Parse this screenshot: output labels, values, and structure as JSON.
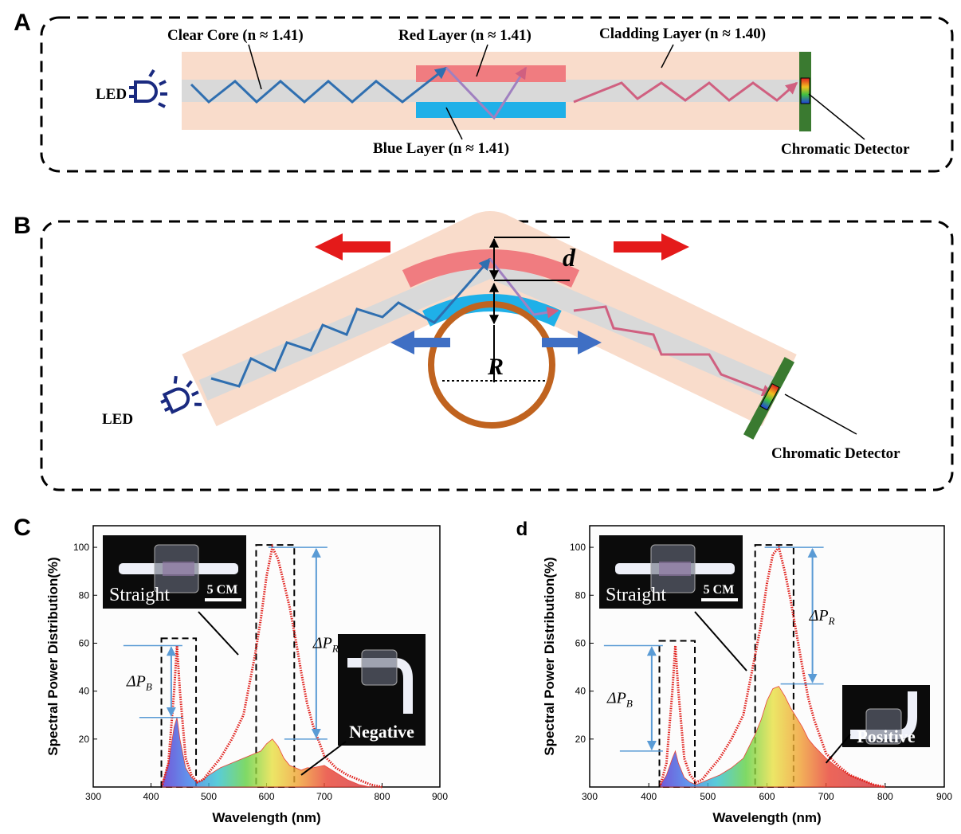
{
  "diagram_a": {
    "panel": "A",
    "core": "Clear Core (n ≈ 1.41)",
    "red": "Red Layer (n ≈ 1.41)",
    "cladding": "Cladding Layer (n ≈ 1.40)",
    "led": "LED",
    "blue": "Blue Layer (n ≈ 1.41)",
    "detector": "Chromatic Detector"
  },
  "diagram_b": {
    "panel": "B",
    "d": "d",
    "r": "R",
    "led": "LED",
    "detector": "Chromatic Detector"
  },
  "chart_data": [
    {
      "type": "line",
      "panel": "C",
      "xlabel": "Wavelength (nm)",
      "ylabel": "Spectral Power Distribution(%)",
      "xlim": [
        300,
        900
      ],
      "ylim": [
        0,
        109
      ],
      "xticks": [
        300,
        400,
        500,
        600,
        700,
        800,
        900
      ],
      "yticks": [
        20,
        40,
        60,
        80,
        100
      ],
      "x": [
        420,
        430,
        440,
        445,
        450,
        460,
        470,
        480,
        490,
        500,
        520,
        540,
        560,
        580,
        590,
        600,
        610,
        620,
        630,
        640,
        650,
        660,
        670,
        680,
        700,
        720,
        740,
        760,
        780,
        800
      ],
      "series": [
        {
          "name": "Straight",
          "color": "#e0201c",
          "values": [
            1,
            10,
            40,
            59,
            40,
            12,
            5,
            2,
            3,
            6,
            12,
            20,
            30,
            55,
            70,
            88,
            100,
            95,
            85,
            75,
            62,
            48,
            35,
            26,
            13,
            8,
            5,
            3,
            1,
            0
          ]
        },
        {
          "name": "Negative",
          "color": "#e8453c",
          "values": [
            2,
            10,
            25,
            29,
            20,
            8,
            4,
            2,
            3,
            5,
            8,
            10,
            12,
            14,
            15,
            18,
            20,
            17,
            12,
            9,
            8,
            7,
            8,
            8,
            9,
            6,
            3,
            1,
            0,
            0
          ]
        }
      ],
      "bands": [
        {
          "x": [
            418,
            478
          ],
          "y": 62
        },
        {
          "x": [
            582,
            648
          ],
          "y": 101
        }
      ],
      "deltas": [
        {
          "label": "ΔP",
          "sub": "B",
          "x": 435,
          "y": [
            29,
            59
          ]
        },
        {
          "label": "ΔP",
          "sub": "R",
          "x": 686,
          "y": [
            20,
            100
          ]
        }
      ],
      "scale": "5 CM"
    },
    {
      "type": "line",
      "panel": "d",
      "xlabel": "Wavelength (nm)",
      "ylabel": "Spectral Power Distribution(%)",
      "xlim": [
        300,
        900
      ],
      "ylim": [
        0,
        109
      ],
      "xticks": [
        300,
        400,
        500,
        600,
        700,
        800,
        900
      ],
      "yticks": [
        20,
        40,
        60,
        80,
        100
      ],
      "x": [
        420,
        430,
        440,
        445,
        450,
        460,
        470,
        480,
        490,
        500,
        520,
        540,
        560,
        580,
        590,
        600,
        610,
        620,
        630,
        640,
        650,
        660,
        670,
        680,
        700,
        720,
        740,
        760,
        780,
        800
      ],
      "series": [
        {
          "name": "Straight",
          "color": "#e0201c",
          "values": [
            1,
            10,
            40,
            59,
            40,
            12,
            5,
            2,
            3,
            6,
            12,
            20,
            30,
            55,
            68,
            85,
            97,
            100,
            90,
            78,
            64,
            50,
            37,
            28,
            14,
            9,
            5,
            3,
            1,
            0
          ]
        },
        {
          "name": "Positive",
          "color": "#e8453c",
          "values": [
            1,
            5,
            12,
            15,
            10,
            4,
            2,
            1,
            2,
            3,
            5,
            8,
            12,
            22,
            28,
            36,
            41,
            42,
            38,
            33,
            29,
            25,
            20,
            17,
            12,
            8,
            5,
            3,
            1,
            0
          ]
        }
      ],
      "bands": [
        {
          "x": [
            418,
            478
          ],
          "y": 61
        },
        {
          "x": [
            580,
            645
          ],
          "y": 101
        }
      ],
      "deltas": [
        {
          "label": "ΔP",
          "sub": "B",
          "x": 405,
          "y": [
            15,
            59
          ]
        },
        {
          "label": "ΔP",
          "sub": "R",
          "x": 677,
          "y": [
            43,
            100
          ]
        }
      ],
      "scale": "5 CM"
    }
  ]
}
